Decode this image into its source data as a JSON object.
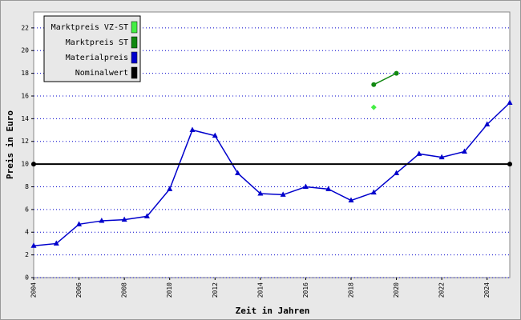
{
  "chart_data": {
    "type": "line",
    "xlabel": "Zeit in Jahren",
    "ylabel": "Preis in Euro",
    "xlim": [
      2004,
      2025
    ],
    "ylim": [
      0,
      23.4
    ],
    "xticks": [
      2004,
      2006,
      2008,
      2010,
      2012,
      2014,
      2016,
      2018,
      2020,
      2022,
      2024
    ],
    "yticks": [
      0,
      2,
      4,
      6,
      8,
      10,
      12,
      14,
      16,
      18,
      20,
      22
    ],
    "grid": true,
    "legend": "upper left",
    "series": [
      {
        "name": "Marktpreis VZ-ST",
        "color": "#44ee44",
        "marker": "diamond",
        "x": [
          2019
        ],
        "values": [
          15.0
        ]
      },
      {
        "name": "Marktpreis ST",
        "color": "#118811",
        "marker": "circle",
        "x": [
          2019,
          2020
        ],
        "values": [
          17.0,
          18.0
        ]
      },
      {
        "name": "Materialpreis",
        "color": "#0000cc",
        "marker": "triangle",
        "x": [
          2004,
          2005,
          2006,
          2007,
          2008,
          2009,
          2010,
          2011,
          2012,
          2013,
          2014,
          2015,
          2016,
          2017,
          2018,
          2019,
          2020,
          2021,
          2022,
          2023,
          2024,
          2025
        ],
        "values": [
          2.8,
          3.0,
          4.7,
          5.0,
          5.1,
          5.4,
          7.8,
          13.0,
          12.5,
          9.2,
          7.4,
          7.3,
          8.0,
          7.8,
          6.8,
          7.5,
          9.2,
          10.9,
          10.6,
          11.1,
          13.5,
          15.4
        ]
      },
      {
        "name": "Nominalwert",
        "color": "#000000",
        "marker": "circle",
        "x": [
          2004,
          2025
        ],
        "values": [
          10,
          10
        ]
      }
    ]
  }
}
